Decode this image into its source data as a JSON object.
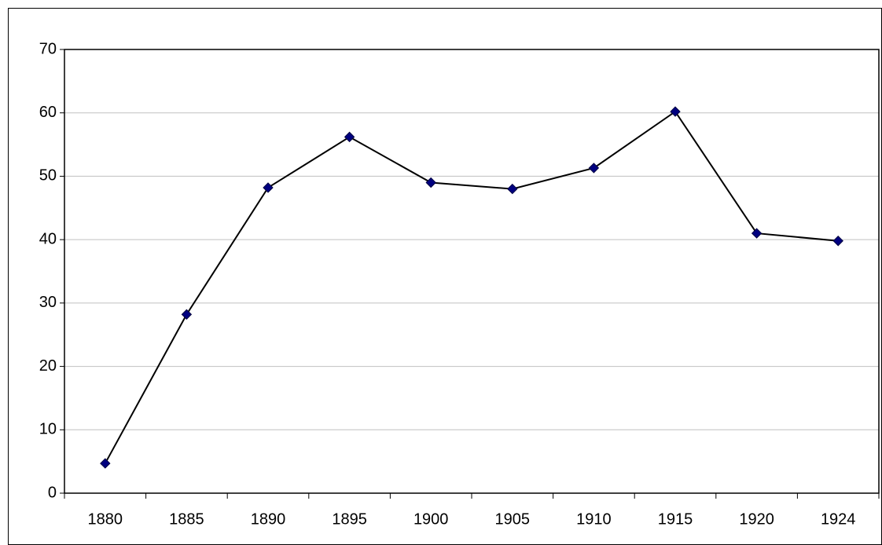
{
  "chart_data": {
    "type": "line",
    "categories": [
      "1880",
      "1885",
      "1890",
      "1895",
      "1900",
      "1905",
      "1910",
      "1915",
      "1920",
      "1924"
    ],
    "values": [
      4.7,
      28.2,
      48.2,
      56.2,
      49,
      48,
      51.3,
      60.2,
      41,
      39.8
    ],
    "color": "#000000",
    "marker_color": "#000080",
    "ylim": [
      0,
      70
    ],
    "yticks": [
      0,
      10,
      20,
      30,
      40,
      50,
      60,
      70
    ],
    "grid": true
  }
}
